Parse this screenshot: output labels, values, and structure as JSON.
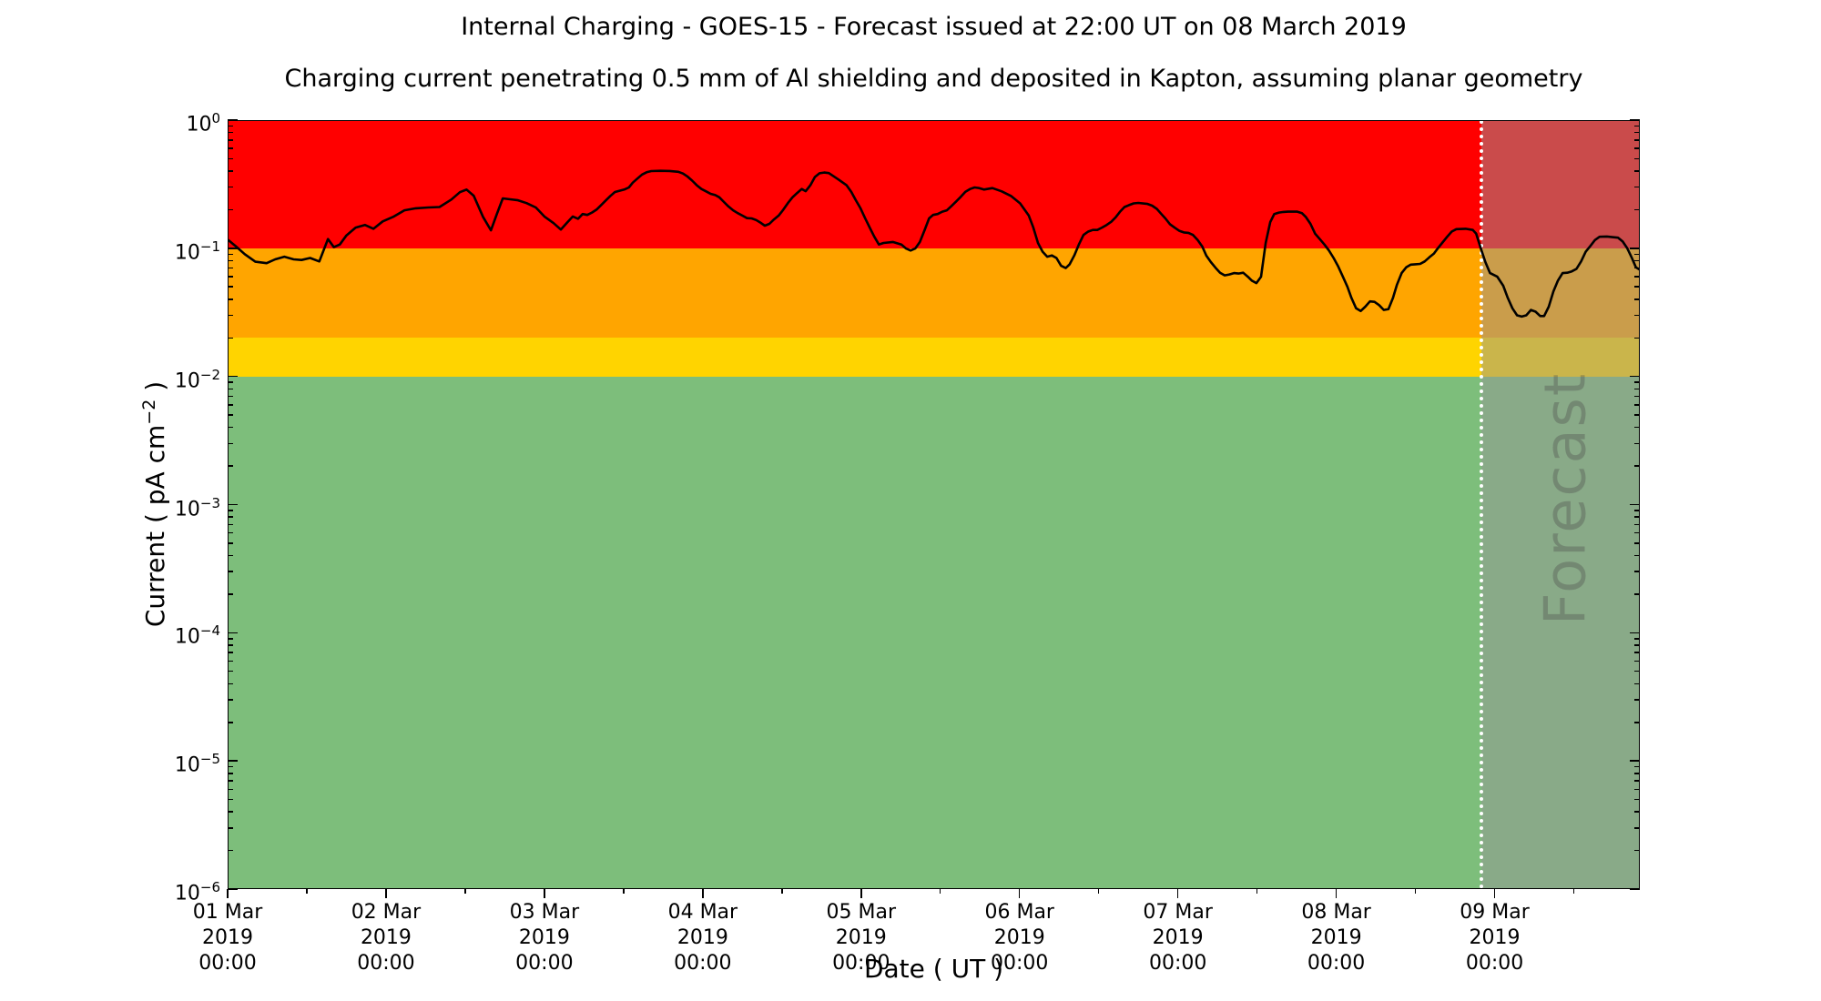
{
  "header": {
    "title": "Internal Charging - GOES-15 - Forecast issued at 22:00 UT on 08 March 2019",
    "subtitle": "Charging current penetrating 0.5 mm of Al shielding and deposited in Kapton, assuming planar geometry"
  },
  "axes": {
    "x_label": "Date ( UT )",
    "y_label_prefix": "Current ( pA cm",
    "y_label_exponent": "−2",
    "y_label_suffix": " )"
  },
  "chart_data": {
    "type": "line",
    "title": "Internal Charging - GOES-15 - Forecast issued at 22:00 UT on 08 March 2019",
    "subtitle": "Charging current penetrating 0.5 mm of Al shielding and deposited in Kapton, assuming planar geometry",
    "xlabel": "Date ( UT )",
    "ylabel": "Current ( pA cm⁻² )",
    "y_scale": "log",
    "ylim": [
      1e-06,
      1
    ],
    "y_tick_exponents": [
      0,
      -1,
      -2,
      -3,
      -4,
      -5,
      -6
    ],
    "xlim_hours": [
      0,
      214
    ],
    "x_ticks": [
      {
        "hour": 0,
        "date": "01 Mar",
        "year": "2019",
        "time": "00:00"
      },
      {
        "hour": 24,
        "date": "02 Mar",
        "year": "2019",
        "time": "00:00"
      },
      {
        "hour": 48,
        "date": "03 Mar",
        "year": "2019",
        "time": "00:00"
      },
      {
        "hour": 72,
        "date": "04 Mar",
        "year": "2019",
        "time": "00:00"
      },
      {
        "hour": 96,
        "date": "05 Mar",
        "year": "2019",
        "time": "00:00"
      },
      {
        "hour": 120,
        "date": "06 Mar",
        "year": "2019",
        "time": "00:00"
      },
      {
        "hour": 144,
        "date": "07 Mar",
        "year": "2019",
        "time": "00:00"
      },
      {
        "hour": 168,
        "date": "08 Mar",
        "year": "2019",
        "time": "00:00"
      },
      {
        "hour": 192,
        "date": "09 Mar",
        "year": "2019",
        "time": "00:00"
      }
    ],
    "bands": [
      {
        "name": "red-high",
        "color": "#FF0000",
        "from": 0.1,
        "to": 1.0
      },
      {
        "name": "orange-raised",
        "color": "#FFA500",
        "from": 0.02,
        "to": 0.1
      },
      {
        "name": "yellow-medium",
        "color": "#FFD400",
        "from": 0.01,
        "to": 0.02
      },
      {
        "name": "green-low",
        "color": "#7DBE7B",
        "from": 1e-06,
        "to": 0.01
      }
    ],
    "forecast": {
      "label": "Forecast",
      "start_hour": 190,
      "end_hour": 214,
      "divider_color": "#FFFFFF",
      "overlay_color": "rgba(150,150,150,0.5)"
    },
    "series": [
      {
        "name": "charging-current",
        "color": "#000000",
        "points": [
          [
            0,
            0.117
          ],
          [
            1.2,
            0.104
          ],
          [
            2.6,
            0.09
          ],
          [
            4.2,
            0.0785
          ],
          [
            5.9,
            0.0765
          ],
          [
            7.2,
            0.082
          ],
          [
            8.6,
            0.086
          ],
          [
            10,
            0.082
          ],
          [
            11.2,
            0.081
          ],
          [
            12.5,
            0.084
          ],
          [
            13.9,
            0.079
          ],
          [
            15.2,
            0.118
          ],
          [
            16.1,
            0.102
          ],
          [
            17,
            0.107
          ],
          [
            18,
            0.126
          ],
          [
            19.4,
            0.145
          ],
          [
            20.8,
            0.152
          ],
          [
            22.1,
            0.142
          ],
          [
            23.5,
            0.162
          ],
          [
            25.2,
            0.177
          ],
          [
            26.8,
            0.198
          ],
          [
            28.5,
            0.205
          ],
          [
            30.4,
            0.208
          ],
          [
            32.1,
            0.21
          ],
          [
            33.9,
            0.24
          ],
          [
            35.2,
            0.274
          ],
          [
            36.2,
            0.287
          ],
          [
            37.3,
            0.257
          ],
          [
            38.7,
            0.176
          ],
          [
            39.9,
            0.138
          ],
          [
            40.8,
            0.185
          ],
          [
            41.7,
            0.245
          ],
          [
            42.8,
            0.241
          ],
          [
            44,
            0.237
          ],
          [
            45.3,
            0.225
          ],
          [
            46.7,
            0.208
          ],
          [
            48,
            0.177
          ],
          [
            49.4,
            0.157
          ],
          [
            50.5,
            0.14
          ],
          [
            51.5,
            0.16
          ],
          [
            52.3,
            0.177
          ],
          [
            53.1,
            0.17
          ],
          [
            53.8,
            0.185
          ],
          [
            54.5,
            0.182
          ],
          [
            55.2,
            0.19
          ],
          [
            55.9,
            0.2
          ],
          [
            56.6,
            0.217
          ],
          [
            57.3,
            0.236
          ],
          [
            58,
            0.256
          ],
          [
            58.7,
            0.275
          ],
          [
            59.4,
            0.281
          ],
          [
            60.1,
            0.287
          ],
          [
            60.8,
            0.298
          ],
          [
            61.4,
            0.325
          ],
          [
            62.1,
            0.35
          ],
          [
            62.8,
            0.376
          ],
          [
            63.5,
            0.392
          ],
          [
            64.2,
            0.4
          ],
          [
            65.6,
            0.402
          ],
          [
            67,
            0.401
          ],
          [
            68.3,
            0.395
          ],
          [
            69,
            0.383
          ],
          [
            69.7,
            0.362
          ],
          [
            70.4,
            0.337
          ],
          [
            71.1,
            0.31
          ],
          [
            71.8,
            0.29
          ],
          [
            72.5,
            0.278
          ],
          [
            73.2,
            0.266
          ],
          [
            73.9,
            0.26
          ],
          [
            74.5,
            0.25
          ],
          [
            75.2,
            0.23
          ],
          [
            75.9,
            0.212
          ],
          [
            76.6,
            0.198
          ],
          [
            77.3,
            0.188
          ],
          [
            78,
            0.18
          ],
          [
            78.7,
            0.172
          ],
          [
            79.4,
            0.171
          ],
          [
            80.1,
            0.166
          ],
          [
            80.8,
            0.158
          ],
          [
            81.4,
            0.15
          ],
          [
            82.1,
            0.155
          ],
          [
            82.8,
            0.168
          ],
          [
            83.5,
            0.18
          ],
          [
            84.2,
            0.2
          ],
          [
            84.9,
            0.225
          ],
          [
            85.6,
            0.25
          ],
          [
            86.3,
            0.27
          ],
          [
            87,
            0.29
          ],
          [
            87.6,
            0.279
          ],
          [
            88.3,
            0.31
          ],
          [
            89,
            0.36
          ],
          [
            89.7,
            0.385
          ],
          [
            90.4,
            0.39
          ],
          [
            91.1,
            0.386
          ],
          [
            92.5,
            0.346
          ],
          [
            93.8,
            0.31
          ],
          [
            94.5,
            0.276
          ],
          [
            95.2,
            0.237
          ],
          [
            95.9,
            0.205
          ],
          [
            96.6,
            0.172
          ],
          [
            97.3,
            0.145
          ],
          [
            98,
            0.123
          ],
          [
            98.7,
            0.107
          ],
          [
            99.4,
            0.11
          ],
          [
            100.8,
            0.112
          ],
          [
            102.1,
            0.107
          ],
          [
            102.8,
            0.0995
          ],
          [
            103.5,
            0.096
          ],
          [
            104.2,
            0.0995
          ],
          [
            104.9,
            0.112
          ],
          [
            105.6,
            0.138
          ],
          [
            106.3,
            0.171
          ],
          [
            106.9,
            0.182
          ],
          [
            107.6,
            0.185
          ],
          [
            108.3,
            0.193
          ],
          [
            109,
            0.198
          ],
          [
            109.7,
            0.214
          ],
          [
            110.4,
            0.232
          ],
          [
            111.1,
            0.252
          ],
          [
            111.8,
            0.276
          ],
          [
            112.5,
            0.29
          ],
          [
            113.2,
            0.298
          ],
          [
            113.9,
            0.295
          ],
          [
            114.6,
            0.287
          ],
          [
            115.9,
            0.295
          ],
          [
            117.3,
            0.278
          ],
          [
            118.7,
            0.256
          ],
          [
            120.1,
            0.224
          ],
          [
            121.4,
            0.18
          ],
          [
            122.1,
            0.145
          ],
          [
            122.8,
            0.11
          ],
          [
            123.5,
            0.094
          ],
          [
            124.2,
            0.086
          ],
          [
            124.9,
            0.088
          ],
          [
            125.6,
            0.084
          ],
          [
            126.3,
            0.073
          ],
          [
            127,
            0.07
          ],
          [
            127.6,
            0.075
          ],
          [
            128.3,
            0.088
          ],
          [
            129,
            0.107
          ],
          [
            129.7,
            0.127
          ],
          [
            130.4,
            0.135
          ],
          [
            131.1,
            0.139
          ],
          [
            131.8,
            0.139
          ],
          [
            132.5,
            0.145
          ],
          [
            133.2,
            0.152
          ],
          [
            133.9,
            0.161
          ],
          [
            134.6,
            0.175
          ],
          [
            135.2,
            0.192
          ],
          [
            135.9,
            0.21
          ],
          [
            136.6,
            0.217
          ],
          [
            137.3,
            0.224
          ],
          [
            138,
            0.226
          ],
          [
            139.4,
            0.222
          ],
          [
            140.1,
            0.215
          ],
          [
            140.8,
            0.203
          ],
          [
            141.5,
            0.185
          ],
          [
            142.1,
            0.171
          ],
          [
            142.8,
            0.154
          ],
          [
            143.5,
            0.145
          ],
          [
            144.2,
            0.137
          ],
          [
            144.9,
            0.133
          ],
          [
            145.6,
            0.132
          ],
          [
            146.3,
            0.127
          ],
          [
            147,
            0.116
          ],
          [
            147.7,
            0.103
          ],
          [
            148.3,
            0.088
          ],
          [
            149,
            0.078
          ],
          [
            149.7,
            0.0705
          ],
          [
            150.4,
            0.0645
          ],
          [
            151.1,
            0.0615
          ],
          [
            151.8,
            0.0625
          ],
          [
            152.5,
            0.064
          ],
          [
            153.2,
            0.0635
          ],
          [
            153.9,
            0.0645
          ],
          [
            154.6,
            0.06
          ],
          [
            155.2,
            0.056
          ],
          [
            155.9,
            0.0535
          ],
          [
            156.6,
            0.06
          ],
          [
            157.3,
            0.11
          ],
          [
            158,
            0.16
          ],
          [
            158.6,
            0.185
          ],
          [
            159.3,
            0.19
          ],
          [
            160,
            0.192
          ],
          [
            160.7,
            0.193
          ],
          [
            162.1,
            0.193
          ],
          [
            162.8,
            0.188
          ],
          [
            163.4,
            0.175
          ],
          [
            164.1,
            0.155
          ],
          [
            164.8,
            0.13
          ],
          [
            165.5,
            0.118
          ],
          [
            166.2,
            0.107
          ],
          [
            166.9,
            0.096
          ],
          [
            167.6,
            0.084
          ],
          [
            168.3,
            0.072
          ],
          [
            169,
            0.06
          ],
          [
            169.7,
            0.05
          ],
          [
            170.3,
            0.041
          ],
          [
            171,
            0.034
          ],
          [
            171.7,
            0.0324
          ],
          [
            172.4,
            0.035
          ],
          [
            173.1,
            0.0385
          ],
          [
            173.8,
            0.0382
          ],
          [
            174.5,
            0.036
          ],
          [
            175.2,
            0.033
          ],
          [
            175.9,
            0.0335
          ],
          [
            176.6,
            0.041
          ],
          [
            177.2,
            0.052
          ],
          [
            177.9,
            0.064
          ],
          [
            178.6,
            0.071
          ],
          [
            179.3,
            0.0745
          ],
          [
            180,
            0.075
          ],
          [
            180.7,
            0.0755
          ],
          [
            181.4,
            0.079
          ],
          [
            182.1,
            0.085
          ],
          [
            182.8,
            0.091
          ],
          [
            183.4,
            0.1
          ],
          [
            184.1,
            0.111
          ],
          [
            184.8,
            0.123
          ],
          [
            185.5,
            0.135
          ],
          [
            186.2,
            0.141
          ],
          [
            187.6,
            0.142
          ],
          [
            188.7,
            0.139
          ],
          [
            189.2,
            0.13
          ],
          [
            189.9,
            0.1
          ],
          [
            190.6,
            0.078
          ],
          [
            191.3,
            0.064
          ],
          [
            192.4,
            0.06
          ],
          [
            193.3,
            0.051
          ],
          [
            194,
            0.041
          ],
          [
            194.7,
            0.034
          ],
          [
            195.4,
            0.03
          ],
          [
            196.1,
            0.0293
          ],
          [
            196.8,
            0.03
          ],
          [
            197.5,
            0.033
          ],
          [
            198.2,
            0.032
          ],
          [
            198.9,
            0.0296
          ],
          [
            199.5,
            0.0296
          ],
          [
            200.2,
            0.035
          ],
          [
            200.9,
            0.046
          ],
          [
            201.6,
            0.056
          ],
          [
            202.3,
            0.064
          ],
          [
            203,
            0.0645
          ],
          [
            203.7,
            0.066
          ],
          [
            204.4,
            0.069
          ],
          [
            205.1,
            0.079
          ],
          [
            205.8,
            0.094
          ],
          [
            206.5,
            0.104
          ],
          [
            207.2,
            0.116
          ],
          [
            207.9,
            0.123
          ],
          [
            209,
            0.1235
          ],
          [
            210,
            0.122
          ],
          [
            210.7,
            0.121
          ],
          [
            211.4,
            0.113
          ],
          [
            212.1,
            0.1
          ],
          [
            212.8,
            0.084
          ],
          [
            213.4,
            0.071
          ],
          [
            214,
            0.068
          ]
        ]
      }
    ]
  }
}
